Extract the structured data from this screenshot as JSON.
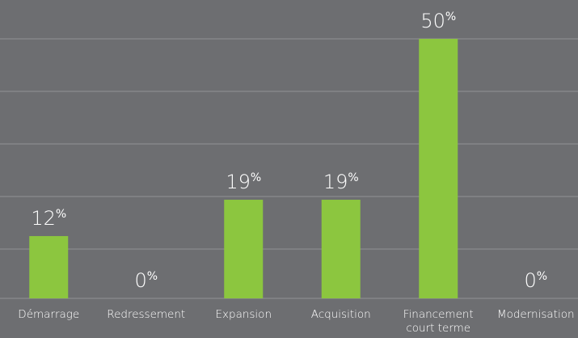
{
  "colors": {
    "background": "#6d6e71",
    "bar": "#8cc63f",
    "grid": "#8a8b8e",
    "text": "#ffffff"
  },
  "chart_data": {
    "type": "bar",
    "title": "",
    "xlabel": "",
    "ylabel": "",
    "ylim": [
      0,
      50
    ],
    "grid": true,
    "legend": "none",
    "value_suffix": "%",
    "categories": [
      [
        "Démarrage"
      ],
      [
        "Redressement"
      ],
      [
        "Expansion"
      ],
      [
        "Acquisition"
      ],
      [
        "Financement",
        "court terme"
      ],
      [
        "Modernisation"
      ]
    ],
    "values": [
      12,
      0,
      19,
      19,
      50,
      0
    ]
  }
}
